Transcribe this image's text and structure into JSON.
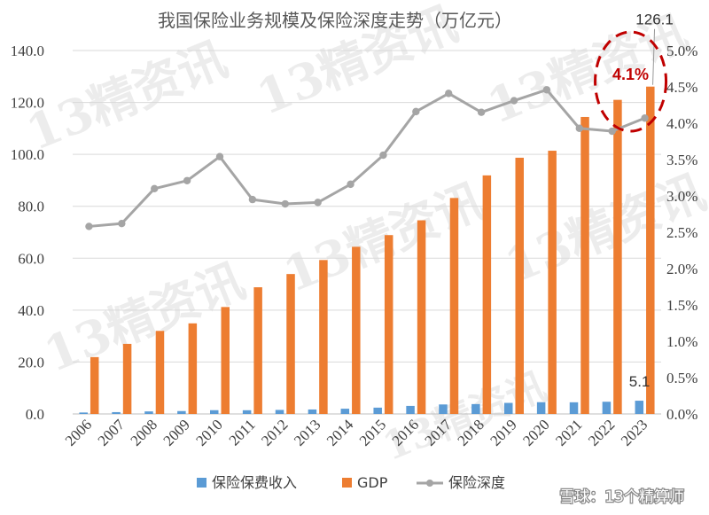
{
  "chart_data": {
    "type": "bar",
    "title": "我国保险业务规模及保险深度走势（万亿元）",
    "categories": [
      "2006",
      "2007",
      "2008",
      "2009",
      "2010",
      "2011",
      "2012",
      "2013",
      "2014",
      "2015",
      "2016",
      "2017",
      "2018",
      "2019",
      "2020",
      "2021",
      "2022",
      "2023"
    ],
    "series": [
      {
        "name": "保险保费收入",
        "type": "bar",
        "axis": "left",
        "color": "#5b9bd5",
        "values": [
          0.56,
          0.7,
          0.98,
          1.11,
          1.45,
          1.43,
          1.55,
          1.72,
          2.02,
          2.43,
          3.1,
          3.66,
          3.8,
          4.26,
          4.53,
          4.49,
          4.7,
          5.1
        ]
      },
      {
        "name": "GDP",
        "type": "bar",
        "axis": "left",
        "color": "#ed7d31",
        "values": [
          21.9,
          27.0,
          32.0,
          34.9,
          41.2,
          48.8,
          53.9,
          59.3,
          64.4,
          68.9,
          74.6,
          83.2,
          91.9,
          98.7,
          101.4,
          114.4,
          121.0,
          126.1
        ]
      },
      {
        "name": "保险深度",
        "type": "line",
        "axis": "right",
        "color": "#a5a5a5",
        "values": [
          2.58,
          2.62,
          3.1,
          3.21,
          3.54,
          2.95,
          2.89,
          2.91,
          3.16,
          3.56,
          4.16,
          4.41,
          4.15,
          4.31,
          4.46,
          3.93,
          3.89,
          4.07
        ]
      }
    ],
    "y_left": {
      "min": 0,
      "max": 140,
      "step": 20,
      "tick_labels": [
        "0.0",
        "20.0",
        "40.0",
        "60.0",
        "80.0",
        "100.0",
        "120.0",
        "140.0"
      ]
    },
    "y_right": {
      "min": 0,
      "max": 5,
      "step": 0.5,
      "tick_labels": [
        "0.0%",
        "0.5%",
        "1.0%",
        "1.5%",
        "2.0%",
        "2.5%",
        "3.0%",
        "3.5%",
        "4.0%",
        "4.5%",
        "5.0%"
      ]
    },
    "data_labels": [
      {
        "series": "GDP",
        "category": "2023",
        "text": "126.1"
      },
      {
        "series": "保险保费收入",
        "category": "2023",
        "text": "5.1"
      }
    ],
    "highlight": {
      "series": "保险深度",
      "category": "2023",
      "text": "4.1%",
      "color": "#c00000"
    },
    "grid": true,
    "legend_position": "bottom"
  },
  "watermark": {
    "text": "13精资讯"
  },
  "credit": {
    "text": "雪球：13个精算师"
  }
}
